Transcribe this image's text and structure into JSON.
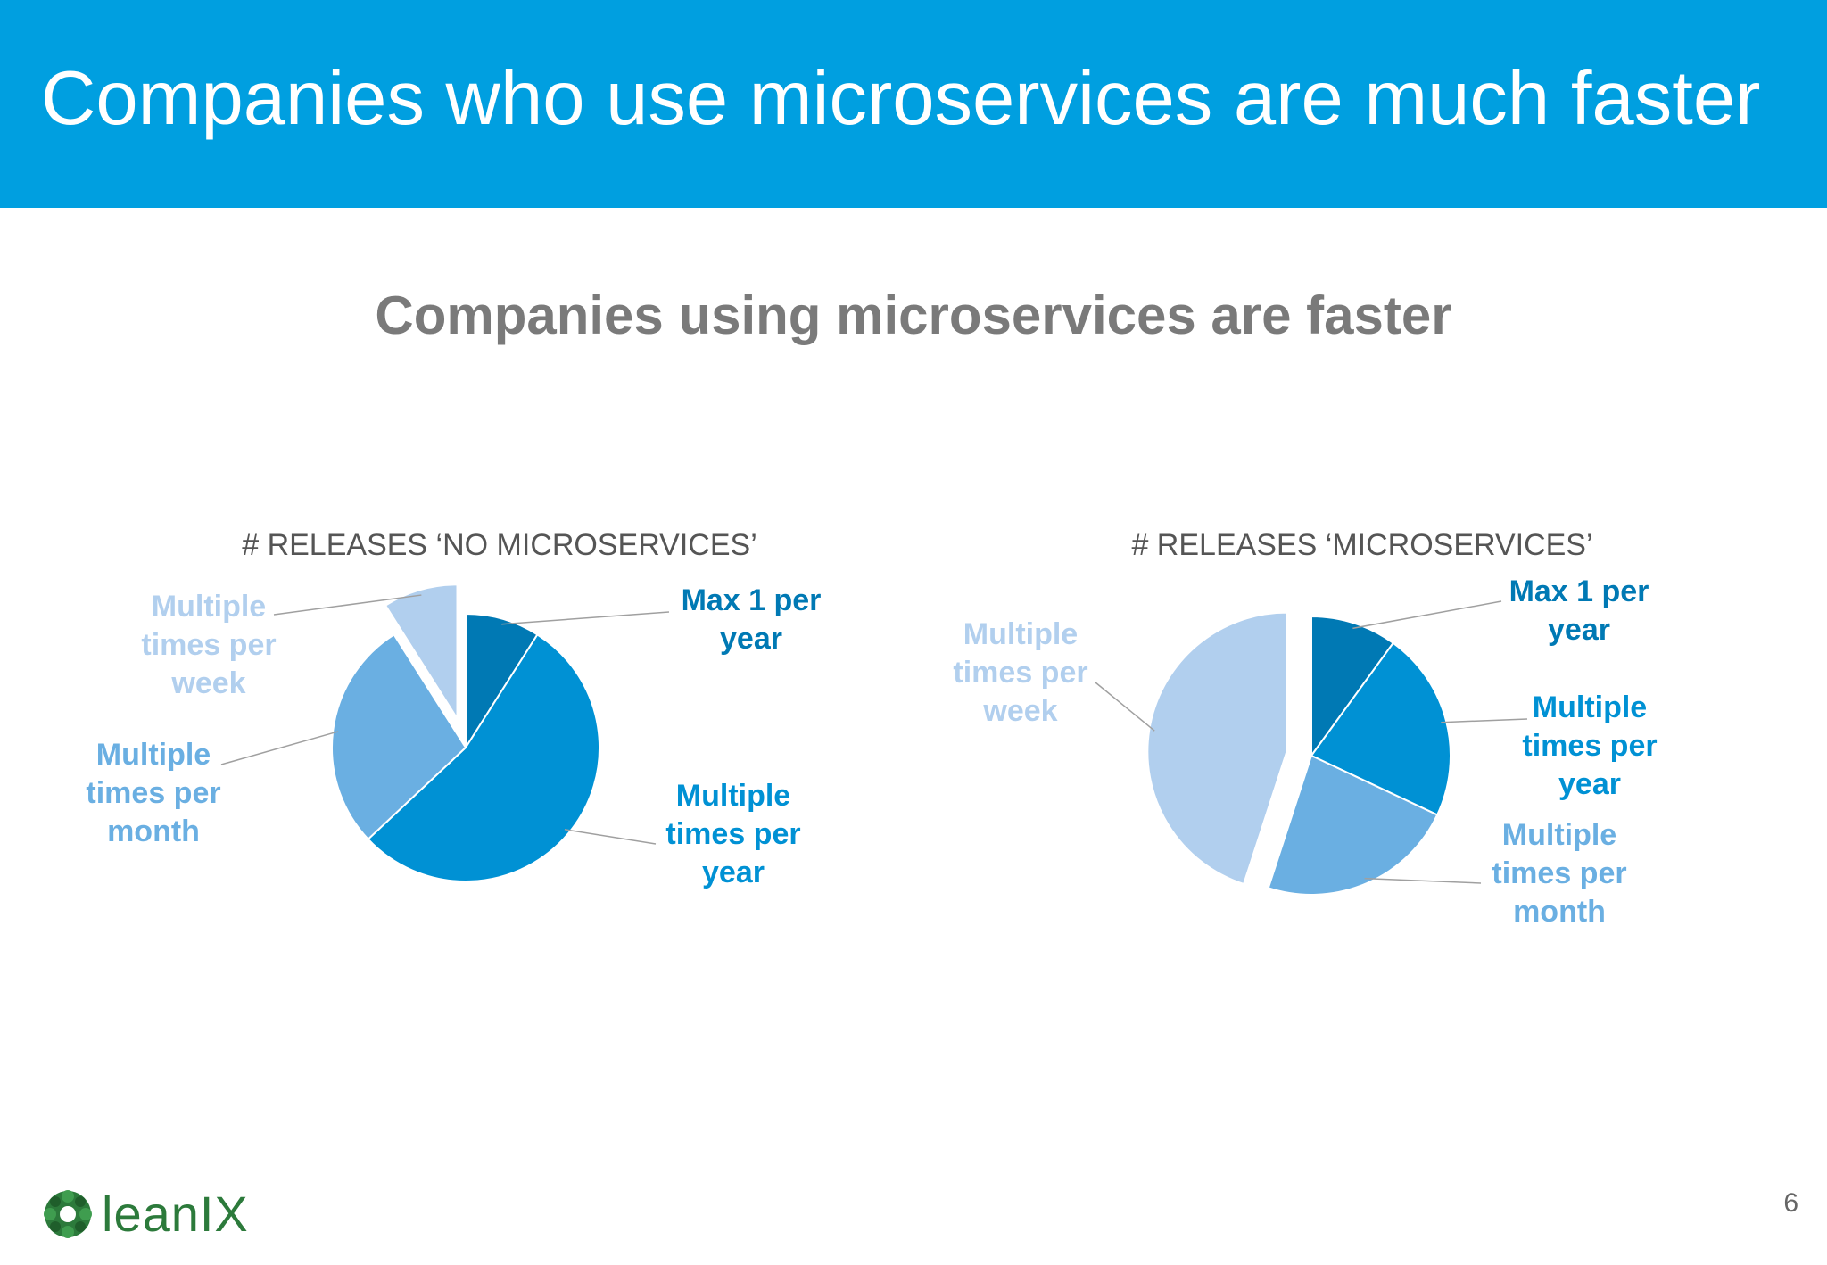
{
  "header": {
    "title": "Companies who use microservices are much faster"
  },
  "subtitle": "Companies using microservices are faster",
  "colors": {
    "header_bg": "#009fe0",
    "max_1_per_year": "#0079b4",
    "multiple_times_per_year": "#0091d4",
    "multiple_times_per_month": "#6aafe2",
    "multiple_times_per_week": "#b1cfee"
  },
  "chart_data": [
    {
      "type": "pie",
      "title": "# RELEASES  ‘NO MICROSERVICES’",
      "slices": [
        {
          "label": "Max 1 per year",
          "lines": [
            "Max 1 per",
            "year"
          ],
          "value": 9,
          "color": "#0079b4",
          "exploded": false
        },
        {
          "label": "Multiple times per year",
          "lines": [
            "Multiple",
            "times per",
            "year"
          ],
          "value": 54,
          "color": "#0091d4",
          "exploded": false
        },
        {
          "label": "Multiple times per month",
          "lines": [
            "Multiple",
            "times per",
            "month"
          ],
          "value": 28,
          "color": "#6aafe2",
          "exploded": false
        },
        {
          "label": "Multiple times per week",
          "lines": [
            "Multiple",
            "times per",
            "week"
          ],
          "value": 9,
          "color": "#b1cfee",
          "exploded": true
        }
      ]
    },
    {
      "type": "pie",
      "title": "# RELEASES ‘MICROSERVICES’",
      "slices": [
        {
          "label": "Max 1 per year",
          "lines": [
            "Max 1 per",
            "year"
          ],
          "value": 10,
          "color": "#0079b4",
          "exploded": false
        },
        {
          "label": "Multiple times per year",
          "lines": [
            "Multiple",
            "times per",
            "year"
          ],
          "value": 22,
          "color": "#0091d4",
          "exploded": false
        },
        {
          "label": "Multiple times per month",
          "lines": [
            "Multiple",
            "times per",
            "month"
          ],
          "value": 23,
          "color": "#6aafe2",
          "exploded": false
        },
        {
          "label": "Multiple times per week",
          "lines": [
            "Multiple",
            "times per",
            "week"
          ],
          "value": 45,
          "color": "#b1cfee",
          "exploded": true
        }
      ]
    }
  ],
  "footer": {
    "logo_text": "leanIX",
    "page_number": "6"
  }
}
